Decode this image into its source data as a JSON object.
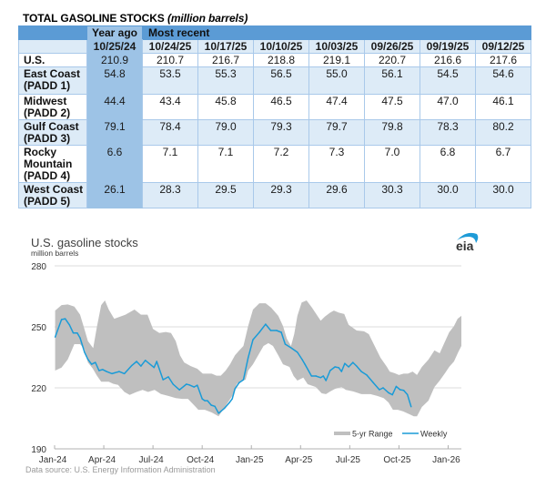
{
  "table": {
    "title": "TOTAL GASOLINE STOCKS",
    "title_units": "(million barrels)",
    "header_groups": {
      "year_ago": "Year ago",
      "most_recent": "Most recent"
    },
    "columns": [
      "10/25/24",
      "10/24/25",
      "10/17/25",
      "10/10/25",
      "10/03/25",
      "09/26/25",
      "09/19/25",
      "09/12/25"
    ],
    "rows": [
      {
        "label": "U.S.",
        "values": [
          "210.9",
          "210.7",
          "216.7",
          "218.8",
          "219.1",
          "220.7",
          "216.6",
          "217.6"
        ]
      },
      {
        "label": "East Coast\n(PADD 1)",
        "values": [
          "54.8",
          "53.5",
          "55.3",
          "56.5",
          "55.0",
          "56.1",
          "54.5",
          "54.6"
        ]
      },
      {
        "label": "Midwest\n(PADD 2)",
        "values": [
          "44.4",
          "43.4",
          "45.8",
          "46.5",
          "47.4",
          "47.5",
          "47.0",
          "46.1"
        ]
      },
      {
        "label": "Gulf Coast\n(PADD 3)",
        "values": [
          "79.1",
          "78.4",
          "79.0",
          "79.3",
          "79.7",
          "79.8",
          "78.3",
          "80.2"
        ]
      },
      {
        "label": "Rocky\nMountain\n(PADD 4)",
        "values": [
          "6.6",
          "7.1",
          "7.1",
          "7.2",
          "7.3",
          "7.0",
          "6.8",
          "6.7"
        ]
      },
      {
        "label": "West Coast\n(PADD 5)",
        "values": [
          "26.1",
          "28.3",
          "29.5",
          "29.3",
          "29.6",
          "30.3",
          "30.0",
          "30.0"
        ]
      }
    ],
    "colors": {
      "header": "#5b9bd5",
      "year_ago": "#9dc3e6",
      "alt_row": "#ddebf7"
    }
  },
  "logo": {
    "text": "eia",
    "color": "#1e9bd7"
  },
  "chart_data": {
    "type": "line",
    "title": "U.S. gasoline stocks",
    "subtitle": "million barrels",
    "xlabel": "",
    "ylabel": "million barrels",
    "ylim": [
      190,
      280
    ],
    "yticks": [
      280,
      250,
      220,
      190
    ],
    "xlim": [
      "2024-01-01",
      "2026-01-26"
    ],
    "xticks": [
      {
        "date": "2024-01-01",
        "label": "Jan-24"
      },
      {
        "date": "2024-04-01",
        "label": "Apr-24"
      },
      {
        "date": "2024-07-01",
        "label": "Jul-24"
      },
      {
        "date": "2024-10-01",
        "label": "Oct-24"
      },
      {
        "date": "2025-01-01",
        "label": "Jan-25"
      },
      {
        "date": "2025-04-01",
        "label": "Apr-25"
      },
      {
        "date": "2025-07-01",
        "label": "Jul-25"
      },
      {
        "date": "2025-10-01",
        "label": "Oct-25"
      },
      {
        "date": "2026-01-01",
        "label": "Jan-26"
      }
    ],
    "grid": "horizontal",
    "legend": {
      "position": "bottom-right",
      "entries": [
        "5-yr Range",
        "Weekly"
      ]
    },
    "source": "Data source: U.S. Energy Information Administration",
    "colors": {
      "range": "#bfbfbf",
      "weekly": "#1a9bd7",
      "grid": "#dcdcdc",
      "axis": "#b0b0b0"
    },
    "series": [
      {
        "name": "5-yr Range",
        "kind": "range",
        "upper": [
          [
            "2024-01-02",
            258.0
          ],
          [
            "2024-01-14",
            260.7
          ],
          [
            "2024-01-26",
            261.0
          ],
          [
            "2024-02-07",
            260.0
          ],
          [
            "2024-02-17",
            256.0
          ],
          [
            "2024-02-24",
            249.6
          ],
          [
            "2024-03-02",
            243.0
          ],
          [
            "2024-03-12",
            239.5
          ],
          [
            "2024-03-19",
            250.0
          ],
          [
            "2024-03-27",
            260.7
          ],
          [
            "2024-04-03",
            263.0
          ],
          [
            "2024-04-10",
            258.5
          ],
          [
            "2024-04-20",
            254.0
          ],
          [
            "2024-05-01",
            255.0
          ],
          [
            "2024-05-11",
            256.0
          ],
          [
            "2024-05-28",
            258.5
          ],
          [
            "2024-06-09",
            256.0
          ],
          [
            "2024-06-21",
            256.0
          ],
          [
            "2024-07-01",
            249.0
          ],
          [
            "2024-07-13",
            247.0
          ],
          [
            "2024-07-25",
            247.5
          ],
          [
            "2024-08-04",
            247.0
          ],
          [
            "2024-08-13",
            243.0
          ],
          [
            "2024-08-21",
            236.0
          ],
          [
            "2024-08-29",
            232.5
          ],
          [
            "2024-09-10",
            230.7
          ],
          [
            "2024-09-22",
            229.4
          ],
          [
            "2024-10-02",
            227.0
          ],
          [
            "2024-10-11",
            227.0
          ],
          [
            "2024-10-19",
            227.0
          ],
          [
            "2024-10-28",
            226.0
          ],
          [
            "2024-11-05",
            226.0
          ],
          [
            "2024-11-14",
            228.5
          ],
          [
            "2024-11-22",
            231.6
          ],
          [
            "2024-12-01",
            236.0
          ],
          [
            "2024-12-09",
            238.4
          ],
          [
            "2024-12-17",
            240.6
          ],
          [
            "2024-12-26",
            250.4
          ],
          [
            "2025-01-04",
            258.5
          ],
          [
            "2025-01-16",
            261.6
          ],
          [
            "2025-01-28",
            261.6
          ],
          [
            "2025-02-07",
            259.4
          ],
          [
            "2025-02-19",
            255.4
          ],
          [
            "2025-02-27",
            250.4
          ],
          [
            "2025-03-06",
            244.2
          ],
          [
            "2025-03-14",
            240.6
          ],
          [
            "2025-03-20",
            246.4
          ],
          [
            "2025-03-26",
            255.4
          ],
          [
            "2025-04-03",
            262.0
          ],
          [
            "2025-04-12",
            263.0
          ],
          [
            "2025-04-22",
            259.4
          ],
          [
            "2025-05-08",
            253.0
          ],
          [
            "2025-05-16",
            255.0
          ],
          [
            "2025-05-26",
            257.0
          ],
          [
            "2025-06-02",
            258.0
          ],
          [
            "2025-06-11",
            257.0
          ],
          [
            "2025-06-21",
            256.3
          ],
          [
            "2025-06-29",
            251.0
          ],
          [
            "2025-07-14",
            248.2
          ],
          [
            "2025-07-28",
            247.8
          ],
          [
            "2025-08-06",
            246.4
          ],
          [
            "2025-08-17",
            240.6
          ],
          [
            "2025-08-28",
            234.8
          ],
          [
            "2025-09-09",
            230.3
          ],
          [
            "2025-09-14",
            228.0
          ],
          [
            "2025-09-23",
            227.2
          ],
          [
            "2025-10-01",
            226.3
          ],
          [
            "2025-10-10",
            227.0
          ],
          [
            "2025-10-18",
            227.0
          ],
          [
            "2025-10-27",
            228.0
          ],
          [
            "2025-11-04",
            226.3
          ],
          [
            "2025-11-13",
            230.3
          ],
          [
            "2025-11-25",
            233.9
          ],
          [
            "2025-12-06",
            238.4
          ],
          [
            "2025-12-16",
            237.0
          ],
          [
            "2025-12-26",
            242.8
          ],
          [
            "2026-01-03",
            247.3
          ],
          [
            "2026-01-12",
            250.4
          ],
          [
            "2026-01-19",
            254.0
          ],
          [
            "2026-01-26",
            255.4
          ]
        ],
        "lower": [
          [
            "2024-01-02",
            228.5
          ],
          [
            "2024-01-14",
            230.0
          ],
          [
            "2024-01-26",
            234.0
          ],
          [
            "2024-02-07",
            241.5
          ],
          [
            "2024-02-17",
            241.5
          ],
          [
            "2024-02-25",
            239.0
          ],
          [
            "2024-03-02",
            232.5
          ],
          [
            "2024-03-11",
            229.5
          ],
          [
            "2024-03-19",
            226.0
          ],
          [
            "2024-03-27",
            223.0
          ],
          [
            "2024-04-10",
            223.0
          ],
          [
            "2024-04-18",
            222.0
          ],
          [
            "2024-04-27",
            221.5
          ],
          [
            "2024-05-09",
            218.0
          ],
          [
            "2024-05-19",
            216.5
          ],
          [
            "2024-06-01",
            218.0
          ],
          [
            "2024-06-12",
            219.0
          ],
          [
            "2024-06-22",
            218.0
          ],
          [
            "2024-07-04",
            219.0
          ],
          [
            "2024-07-16",
            217.0
          ],
          [
            "2024-07-30",
            216.0
          ],
          [
            "2024-08-13",
            215.0
          ],
          [
            "2024-08-25",
            214.6
          ],
          [
            "2024-09-05",
            214.6
          ],
          [
            "2024-09-16",
            211.5
          ],
          [
            "2024-09-24",
            209.2
          ],
          [
            "2024-10-06",
            209.2
          ],
          [
            "2024-10-19",
            207.9
          ],
          [
            "2024-11-01",
            206.0
          ],
          [
            "2024-11-09",
            209.2
          ],
          [
            "2024-11-17",
            212.4
          ],
          [
            "2024-11-26",
            216.0
          ],
          [
            "2024-12-04",
            221.8
          ],
          [
            "2024-12-12",
            223.6
          ],
          [
            "2024-12-21",
            224.0
          ],
          [
            "2024-12-26",
            228.5
          ],
          [
            "2025-01-04",
            231.6
          ],
          [
            "2025-01-12",
            235.2
          ],
          [
            "2025-01-24",
            240.6
          ],
          [
            "2025-02-02",
            242.0
          ],
          [
            "2025-02-10",
            240.6
          ],
          [
            "2025-02-19",
            236.0
          ],
          [
            "2025-02-27",
            231.6
          ],
          [
            "2025-03-11",
            230.3
          ],
          [
            "2025-03-19",
            225.8
          ],
          [
            "2025-03-26",
            223.6
          ],
          [
            "2025-04-06",
            225.0
          ],
          [
            "2025-04-14",
            221.8
          ],
          [
            "2025-04-29",
            220.4
          ],
          [
            "2025-05-10",
            217.3
          ],
          [
            "2025-05-18",
            216.9
          ],
          [
            "2025-05-26",
            218.2
          ],
          [
            "2025-06-04",
            219.5
          ],
          [
            "2025-06-16",
            220.4
          ],
          [
            "2025-06-24",
            219.0
          ],
          [
            "2025-07-08",
            218.2
          ],
          [
            "2025-07-23",
            216.9
          ],
          [
            "2025-08-09",
            216.9
          ],
          [
            "2025-08-22",
            216.0
          ],
          [
            "2025-09-03",
            215.0
          ],
          [
            "2025-09-12",
            212.8
          ],
          [
            "2025-09-20",
            209.2
          ],
          [
            "2025-09-29",
            209.2
          ],
          [
            "2025-10-09",
            208.4
          ],
          [
            "2025-10-21",
            207.0
          ],
          [
            "2025-10-29",
            206.0
          ],
          [
            "2025-11-04",
            206.0
          ],
          [
            "2025-11-13",
            210.6
          ],
          [
            "2025-11-25",
            213.7
          ],
          [
            "2025-12-06",
            220.4
          ],
          [
            "2025-12-16",
            223.6
          ],
          [
            "2025-12-26",
            227.2
          ],
          [
            "2026-01-03",
            230.3
          ],
          [
            "2026-01-12",
            233.0
          ],
          [
            "2026-01-20",
            237.5
          ],
          [
            "2026-01-26",
            240.6
          ]
        ]
      },
      {
        "name": "Weekly",
        "kind": "line",
        "values": [
          [
            "2024-01-02",
            245.0
          ],
          [
            "2024-01-14",
            253.6
          ],
          [
            "2024-01-21",
            254.0
          ],
          [
            "2024-01-29",
            251.0
          ],
          [
            "2024-02-05",
            247.0
          ],
          [
            "2024-02-12",
            247.0
          ],
          [
            "2024-02-17",
            244.6
          ],
          [
            "2024-02-25",
            237.5
          ],
          [
            "2024-03-02",
            234.0
          ],
          [
            "2024-03-09",
            231.6
          ],
          [
            "2024-03-16",
            232.5
          ],
          [
            "2024-03-23",
            228.5
          ],
          [
            "2024-03-30",
            229.0
          ],
          [
            "2024-04-06",
            228.0
          ],
          [
            "2024-04-16",
            227.0
          ],
          [
            "2024-04-29",
            228.0
          ],
          [
            "2024-05-09",
            227.0
          ],
          [
            "2024-05-23",
            231.0
          ],
          [
            "2024-06-01",
            233.0
          ],
          [
            "2024-06-09",
            230.7
          ],
          [
            "2024-06-17",
            233.5
          ],
          [
            "2024-07-03",
            230.0
          ],
          [
            "2024-07-08",
            233.0
          ],
          [
            "2024-07-20",
            224.0
          ],
          [
            "2024-07-30",
            225.4
          ],
          [
            "2024-08-08",
            221.8
          ],
          [
            "2024-08-20",
            219.0
          ],
          [
            "2024-09-02",
            221.8
          ],
          [
            "2024-09-07",
            221.5
          ],
          [
            "2024-09-16",
            220.4
          ],
          [
            "2024-09-22",
            221.3
          ],
          [
            "2024-10-01",
            214.6
          ],
          [
            "2024-10-06",
            213.7
          ],
          [
            "2024-10-11",
            213.7
          ],
          [
            "2024-10-18",
            211.5
          ],
          [
            "2024-10-25",
            210.9
          ],
          [
            "2024-11-01",
            207.5
          ],
          [
            "2024-11-12",
            210.0
          ],
          [
            "2024-11-21",
            212.8
          ],
          [
            "2024-11-26",
            214.6
          ],
          [
            "2024-12-01",
            219.5
          ],
          [
            "2024-12-09",
            222.6
          ],
          [
            "2024-12-17",
            224.0
          ],
          [
            "2024-12-26",
            234.8
          ],
          [
            "2025-01-04",
            243.7
          ],
          [
            "2025-01-16",
            247.3
          ],
          [
            "2025-01-28",
            251.3
          ],
          [
            "2025-02-06",
            248.2
          ],
          [
            "2025-02-16",
            248.2
          ],
          [
            "2025-02-24",
            247.3
          ],
          [
            "2025-03-03",
            241.5
          ],
          [
            "2025-03-14",
            239.7
          ],
          [
            "2025-03-26",
            237.5
          ],
          [
            "2025-04-04",
            233.9
          ],
          [
            "2025-04-09",
            231.6
          ],
          [
            "2025-04-21",
            225.8
          ],
          [
            "2025-04-29",
            225.8
          ],
          [
            "2025-05-08",
            225.0
          ],
          [
            "2025-05-13",
            225.8
          ],
          [
            "2025-05-18",
            223.6
          ],
          [
            "2025-05-26",
            228.5
          ],
          [
            "2025-06-04",
            230.3
          ],
          [
            "2025-06-11",
            229.9
          ],
          [
            "2025-06-16",
            228.0
          ],
          [
            "2025-06-22",
            232.0
          ],
          [
            "2025-06-29",
            230.3
          ],
          [
            "2025-07-07",
            232.5
          ],
          [
            "2025-07-14",
            230.7
          ],
          [
            "2025-07-23",
            228.0
          ],
          [
            "2025-08-02",
            226.3
          ],
          [
            "2025-08-14",
            222.7
          ],
          [
            "2025-08-26",
            219.1
          ],
          [
            "2025-09-02",
            220.0
          ],
          [
            "2025-09-12",
            217.6
          ],
          [
            "2025-09-19",
            216.6
          ],
          [
            "2025-09-26",
            220.7
          ],
          [
            "2025-10-03",
            219.1
          ],
          [
            "2025-10-10",
            218.8
          ],
          [
            "2025-10-17",
            216.7
          ],
          [
            "2025-10-24",
            210.7
          ]
        ]
      }
    ]
  }
}
